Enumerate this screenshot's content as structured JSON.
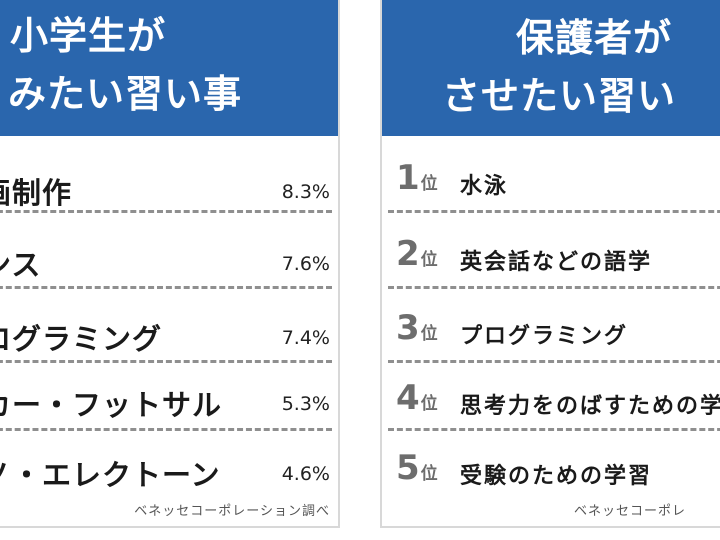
{
  "left": {
    "title_line1": "小学生が",
    "title_line2": "みたい習い事",
    "items": [
      {
        "label": "画制作",
        "value": "8.3%"
      },
      {
        "label": "ンス",
        "value": "7.6%"
      },
      {
        "label": "ログラミング",
        "value": "7.4%"
      },
      {
        "label": "カー・フットサル",
        "value": "5.3%"
      },
      {
        "label": "ノ・エレクトーン",
        "value": "4.6%"
      }
    ],
    "source": "ベネッセコーポレーション調べ"
  },
  "right": {
    "title_line1": "保護者が",
    "title_line2": "させたい習い",
    "items": [
      {
        "rank": "1",
        "suffix": "位",
        "label": "水泳"
      },
      {
        "rank": "2",
        "suffix": "位",
        "label": "英会話などの語学"
      },
      {
        "rank": "3",
        "suffix": "位",
        "label": "プログラミング"
      },
      {
        "rank": "4",
        "suffix": "位",
        "label": "思考力をのばすための学"
      },
      {
        "rank": "5",
        "suffix": "位",
        "label": "受験のための学習"
      }
    ],
    "source": "ベネッセコーポレ"
  },
  "colors": {
    "banner": "#2a66ad",
    "banner_text": "#ffffff",
    "rank_text": "#6d6d6d",
    "divider": "#8f8f8f"
  }
}
